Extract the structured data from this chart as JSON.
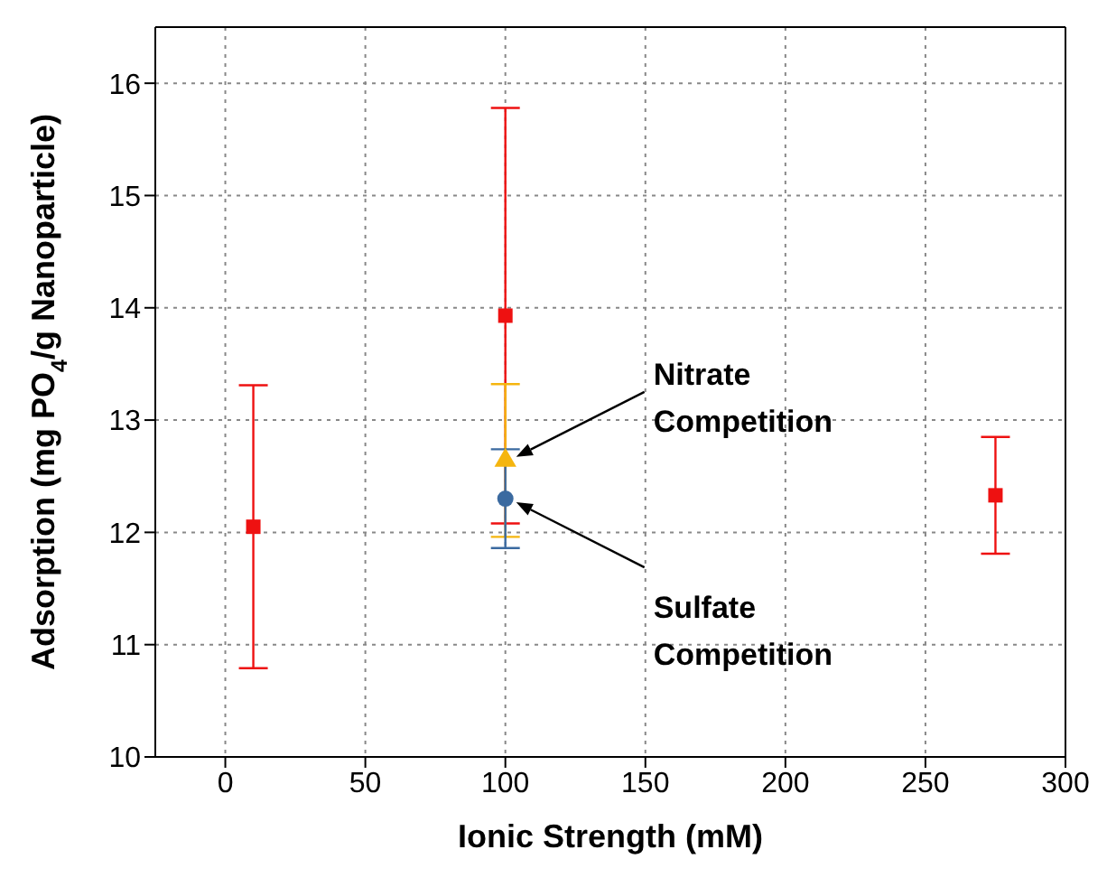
{
  "chart_data": {
    "type": "scatter",
    "xlabel": "Ionic Strength (mM)",
    "ylabel": "Adsorption (mg PO$_{4}$/g Nanoparticle)",
    "xlim": [
      -25,
      300
    ],
    "xticks": [
      0,
      50,
      100,
      150,
      200,
      250,
      300
    ],
    "ylim": [
      10,
      16.5
    ],
    "yticks": [
      10,
      11,
      12,
      13,
      14,
      15,
      16
    ],
    "grid": true,
    "legend": false,
    "series": [
      {
        "color": "#ee1111",
        "marker": "square",
        "x": [
          10,
          100,
          275
        ],
        "values": [
          12.05,
          13.93,
          12.33
        ],
        "errors": [
          1.26,
          1.85,
          0.52
        ]
      },
      {
        "color": "#f5b50f",
        "marker": "triangle",
        "x": [
          100
        ],
        "values": [
          12.64
        ],
        "errors": [
          0.68
        ]
      },
      {
        "color": "#3b6aa0",
        "marker": "circle",
        "x": [
          100
        ],
        "values": [
          12.3
        ],
        "errors": [
          0.44
        ]
      }
    ],
    "annotations": [
      "Nitrate Competition",
      "Sulfate Competition"
    ]
  }
}
